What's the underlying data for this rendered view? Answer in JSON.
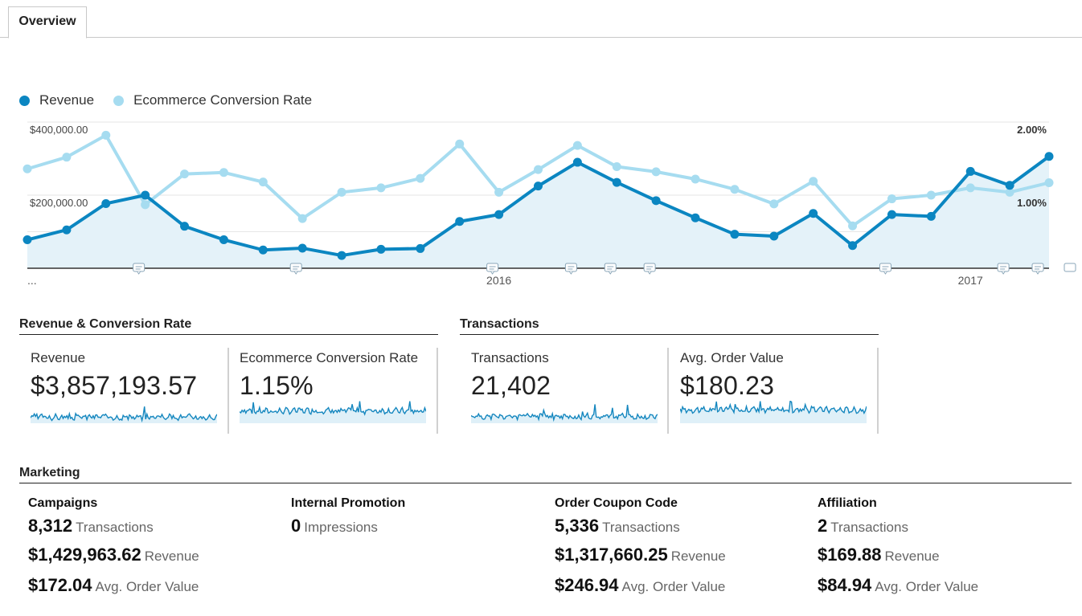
{
  "tabs": [
    {
      "label": "Overview",
      "active": true
    }
  ],
  "legend": [
    {
      "label": "Revenue",
      "color": "#0b86c1"
    },
    {
      "label": "Ecommerce Conversion Rate",
      "color": "#a6dcf0"
    }
  ],
  "chart_data": {
    "type": "line",
    "series": [
      {
        "name": "Revenue",
        "axis": "left",
        "color": "#0b86c1",
        "values": [
          78000,
          105000,
          177000,
          200000,
          115000,
          78000,
          50000,
          55000,
          35000,
          52000,
          54000,
          128000,
          147000,
          225000,
          290000,
          235000,
          185000,
          138000,
          93000,
          88000,
          150000,
          62000,
          147000,
          142000,
          265000,
          227000,
          306000
        ]
      },
      {
        "name": "Ecommerce Conversion Rate",
        "axis": "right",
        "color": "#a6dcf0",
        "values": [
          1.36,
          1.52,
          1.82,
          0.87,
          1.29,
          1.31,
          1.18,
          0.68,
          1.04,
          1.1,
          1.23,
          1.7,
          1.04,
          1.35,
          1.68,
          1.39,
          1.32,
          1.22,
          1.08,
          0.88,
          1.19,
          0.58,
          0.95,
          1.0,
          1.1,
          1.04,
          1.17
        ]
      }
    ],
    "y_left": {
      "ticks": [
        "$400,000.00",
        "$200,000.00"
      ],
      "max": 400000,
      "min": 0
    },
    "y_right": {
      "ticks": [
        "2.00%",
        "1.00%"
      ],
      "max": 2.0,
      "min": 0
    },
    "x_labels": [
      {
        "label": "...",
        "index": 0
      },
      {
        "label": "2016",
        "index": 12
      },
      {
        "label": "2017",
        "index": 24
      }
    ],
    "annotation_markers": [
      3,
      7,
      12,
      14,
      15,
      16,
      22,
      25,
      26
    ],
    "grid": true
  },
  "sections": {
    "revenue_conversion": {
      "title": "Revenue & Conversion Rate"
    },
    "transactions": {
      "title": "Transactions"
    },
    "marketing": {
      "title": "Marketing"
    }
  },
  "metrics": [
    {
      "label": "Revenue",
      "value": "$3,857,193.57",
      "spark_seed": 3,
      "spark_base": 0.28
    },
    {
      "label": "Ecommerce Conversion Rate",
      "value": "1.15%",
      "spark_seed": 7,
      "spark_base": 0.55
    },
    {
      "label": "Transactions",
      "value": "21,402",
      "spark_seed": 11,
      "spark_base": 0.3
    },
    {
      "label": "Avg. Order Value",
      "value": "$180.23",
      "spark_seed": 17,
      "spark_base": 0.6
    }
  ],
  "marketing": [
    {
      "title": "Campaigns",
      "rows": [
        {
          "num": "8,312",
          "unit": "Transactions"
        },
        {
          "num": "$1,429,963.62",
          "unit": "Revenue"
        },
        {
          "num": "$172.04",
          "unit": "Avg. Order Value"
        }
      ]
    },
    {
      "title": "Internal Promotion",
      "rows": [
        {
          "num": "0",
          "unit": "Impressions"
        }
      ]
    },
    {
      "title": "Order Coupon Code",
      "rows": [
        {
          "num": "5,336",
          "unit": "Transactions"
        },
        {
          "num": "$1,317,660.25",
          "unit": "Revenue"
        },
        {
          "num": "$246.94",
          "unit": "Avg. Order Value"
        }
      ]
    },
    {
      "title": "Affiliation",
      "rows": [
        {
          "num": "2",
          "unit": "Transactions"
        },
        {
          "num": "$169.88",
          "unit": "Revenue"
        },
        {
          "num": "$84.94",
          "unit": "Avg. Order Value"
        }
      ]
    }
  ]
}
